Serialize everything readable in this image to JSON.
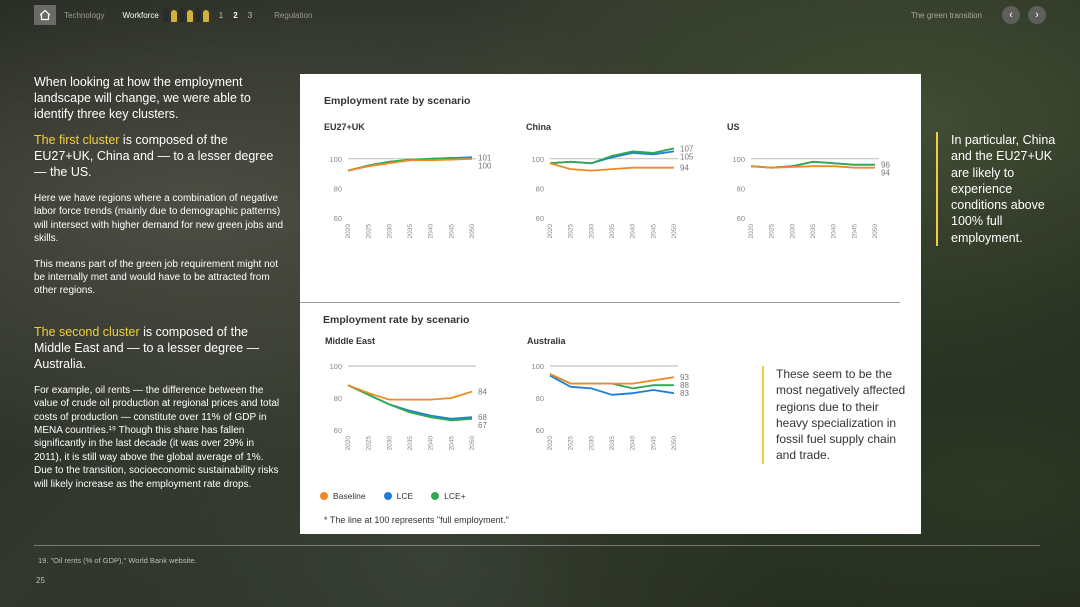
{
  "nav": {
    "items": [
      "Technology",
      "Workforce"
    ],
    "pages": [
      "1",
      "2",
      "3"
    ],
    "active_page": "2",
    "next_section": "Regulation",
    "right_link": "The green transition",
    "prev_glyph": "‹",
    "next_glyph": "›"
  },
  "left": {
    "lead": "When looking at how the employment landscape will change, we were able to identify three key clusters.",
    "first_cluster_highlight": "The first cluster",
    "first_cluster_rest": " is composed of the EU27+UK, China and — to a lesser degree — the US.",
    "para1": "Here we have regions where a combination of negative labor force trends (mainly due to demographic patterns) will intersect with higher demand for new green jobs and skills.",
    "para2": "This means part of the green job requirement might not be internally met and would have to be attracted from other regions.",
    "second_cluster_highlight": "The second cluster",
    "second_cluster_rest": " is composed of the Middle East and — to a lesser degree — Australia.",
    "para3": "For example, oil rents — the difference between the value of crude oil production at regional prices and total costs of production — constitute over 11% of GDP in MENA countries.¹⁹ Though this share has fallen significantly in the last decade (it was over 29% in 2011), it is still way above the global average of 1%. Due to the transition, socioeconomic sustainability risks will likely increase as the employment rate drops."
  },
  "panel": {
    "title_top": "Employment rate by scenario",
    "title_bottom": "Employment rate by scenario",
    "note": "These seem to be the most negatively affected regions due to their heavy specialization in fossil fuel supply chain and trade.",
    "footnote": "* The line at 100 represents \"full employment.\"",
    "legend": [
      "Baseline",
      "LCE",
      "LCE+"
    ]
  },
  "callout": "In particular, China and the EU27+UK are likely to experience conditions above 100% full employment.",
  "footer": {
    "footnote": "19. \"Oil rents (% of GDP),\" World Bank website.",
    "page_number": "25"
  },
  "colors": {
    "baseline": "#f08a24",
    "lce": "#1f7fd6",
    "lce_plus": "#2fa84f",
    "accent": "#f1cf3c"
  },
  "chart_data": [
    {
      "type": "line",
      "title": "EU27+UK",
      "x": [
        2020,
        2025,
        2030,
        2035,
        2040,
        2045,
        2050
      ],
      "ylim": [
        60,
        110
      ],
      "yticks": [
        60,
        80,
        100
      ],
      "series": [
        {
          "name": "Baseline",
          "values": [
            92,
            95,
            97,
            99,
            99,
            99.5,
            100
          ],
          "end_label": "100"
        },
        {
          "name": "LCE",
          "values": [
            92,
            95.5,
            98,
            99,
            100,
            100.5,
            101
          ],
          "end_label": "101"
        },
        {
          "name": "LCE+",
          "values": [
            92,
            95.5,
            98,
            99.5,
            100,
            100.5,
            100
          ],
          "end_label": ""
        }
      ]
    },
    {
      "type": "line",
      "title": "China",
      "x": [
        2020,
        2025,
        2030,
        2035,
        2040,
        2045,
        2050
      ],
      "ylim": [
        60,
        110
      ],
      "yticks": [
        60,
        80,
        100
      ],
      "series": [
        {
          "name": "Baseline",
          "values": [
            97,
            93,
            92,
            93,
            94,
            94,
            94
          ],
          "end_label": "94"
        },
        {
          "name": "LCE",
          "values": [
            97,
            98,
            97,
            101,
            104,
            103,
            105
          ],
          "end_label": "105"
        },
        {
          "name": "LCE+",
          "values": [
            97,
            98,
            97,
            102,
            105,
            104,
            107
          ],
          "end_label": "107"
        }
      ]
    },
    {
      "type": "line",
      "title": "US",
      "x": [
        2020,
        2025,
        2030,
        2035,
        2040,
        2045,
        2050
      ],
      "ylim": [
        60,
        110
      ],
      "yticks": [
        60,
        80,
        100
      ],
      "series": [
        {
          "name": "Baseline",
          "values": [
            95,
            94,
            94.5,
            95,
            95,
            94,
            94
          ],
          "end_label": "94"
        },
        {
          "name": "LCE",
          "values": [
            95,
            94,
            95,
            98,
            97,
            96,
            96
          ],
          "end_label": "96"
        },
        {
          "name": "LCE+",
          "values": [
            95,
            94,
            95,
            98,
            97,
            96,
            96
          ],
          "end_label": ""
        }
      ]
    },
    {
      "type": "line",
      "title": "Middle East",
      "x": [
        2020,
        2025,
        2030,
        2035,
        2040,
        2045,
        2050
      ],
      "ylim": [
        60,
        100
      ],
      "yticks": [
        60,
        80,
        100
      ],
      "series": [
        {
          "name": "Baseline",
          "values": [
            88,
            83,
            79,
            79,
            79,
            80,
            84
          ],
          "end_label": "84"
        },
        {
          "name": "LCE",
          "values": [
            88,
            82,
            76,
            72,
            69,
            67,
            68
          ],
          "end_label": "68"
        },
        {
          "name": "LCE+",
          "values": [
            88,
            82,
            76,
            71,
            68,
            66,
            67
          ],
          "end_label": "67"
        }
      ]
    },
    {
      "type": "line",
      "title": "Australia",
      "x": [
        2020,
        2025,
        2030,
        2035,
        2040,
        2045,
        2050
      ],
      "ylim": [
        60,
        100
      ],
      "yticks": [
        60,
        80,
        100
      ],
      "series": [
        {
          "name": "Baseline",
          "values": [
            95,
            89,
            89,
            89,
            89,
            91,
            93
          ],
          "end_label": "93"
        },
        {
          "name": "LCE",
          "values": [
            94,
            87,
            86,
            82,
            83,
            85,
            83
          ],
          "end_label": "83"
        },
        {
          "name": "LCE+",
          "values": [
            95,
            89,
            89,
            89,
            86,
            88,
            88
          ],
          "end_label": "88"
        }
      ]
    }
  ]
}
